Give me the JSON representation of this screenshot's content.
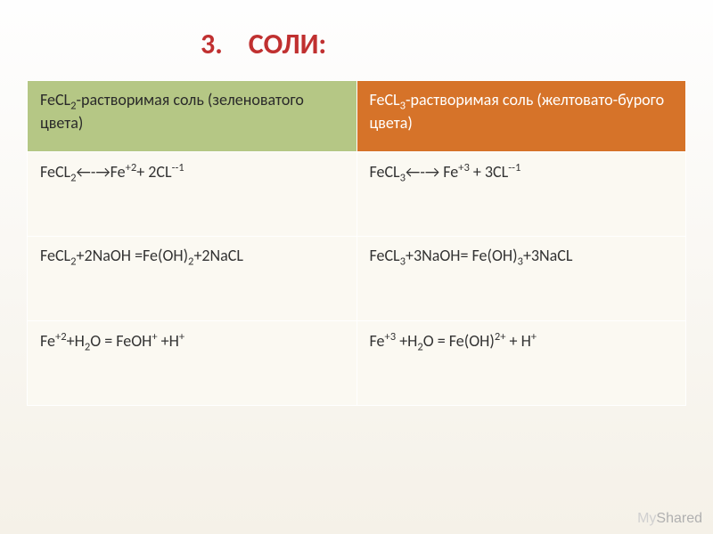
{
  "title_number": "3.",
  "title_text": "СОЛИ:",
  "title_color": "#c03030",
  "colors": {
    "header_left_bg": "#b5c785",
    "header_right_bg": "#d67329",
    "cell_bg": "#fbf9f2",
    "border": "#ffffff",
    "body_gradient_top": "#fefefe",
    "body_gradient_bottom": "#f5f1e8"
  },
  "table": {
    "columns": 2,
    "rows": [
      {
        "left": "FeCL<sub>2</sub>-растворимая соль (зеленоватого цвета)",
        "right": "FeCL<sub>3</sub>-растворимая соль (желтовато-бурого цвета)",
        "is_header": true
      },
      {
        "left": "FeCL<sub>2</sub>&#8592;-&#8594;Fe<sup>+2</sup>+ 2CL<sup>--1</sup>",
        "right": "FeCL<sub>3</sub>&#8592;-&#8594; Fe<sup>+3</sup> + 3CL<sup>--1</sup>"
      },
      {
        "left": "FeCL<sub>2</sub>+2NaOH =Fe(OH)<sub>2</sub>+2NaCL",
        "right": "FeCL<sub>3</sub>+3NaOH= Fe(OH)<sub>3</sub>+3NaCL"
      },
      {
        "left": "Fe<sup>+2</sup>+H<sub>2</sub>O = FeOH<sup>+</sup> +H<sup>+</sup>",
        "right": "Fe<sup>+3</sup> +H<sub>2</sub>O = Fe(OH)<sup>2+</sup> + H<sup>+</sup>"
      }
    ]
  },
  "watermark": "MyShared",
  "fontsize": {
    "title": 32,
    "cell": 18
  }
}
